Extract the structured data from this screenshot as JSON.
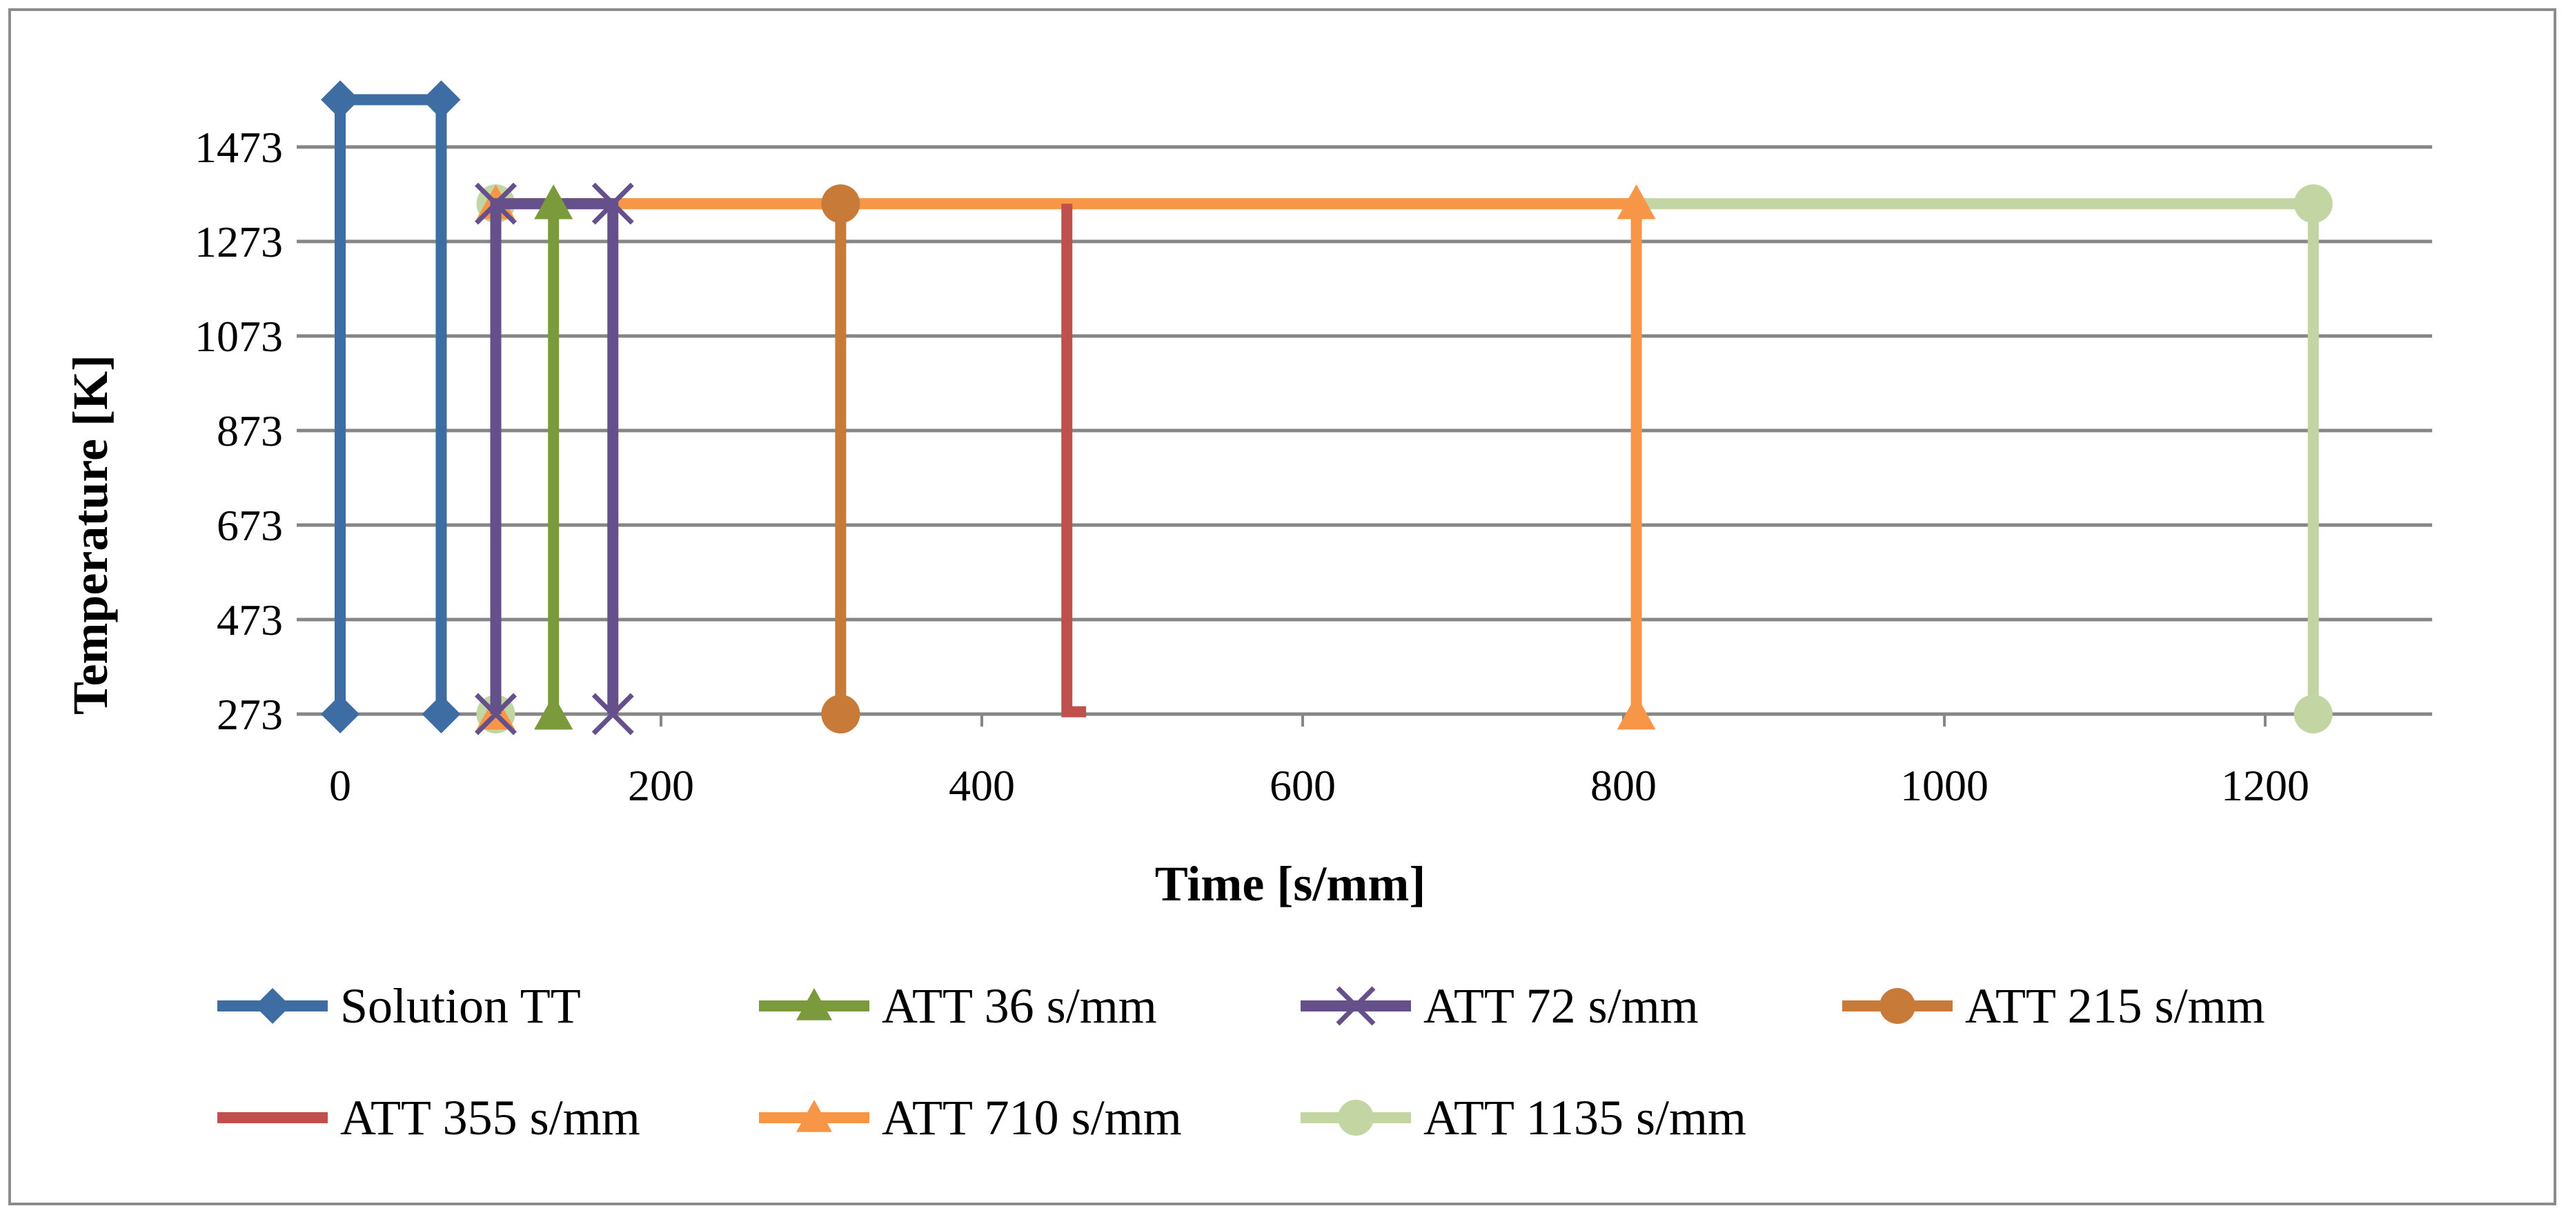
{
  "chart_data": {
    "type": "line",
    "title": "",
    "xlabel": "Time [s/mm]",
    "ylabel": "Temperature [K]",
    "xlim": [
      0,
      1300
    ],
    "ylim": [
      273,
      1573
    ],
    "xticks": [
      0,
      200,
      400,
      600,
      800,
      1000,
      1200
    ],
    "yticks": [
      273,
      473,
      673,
      873,
      1073,
      1273,
      1473
    ],
    "grid": "horizontal",
    "legend_position": "bottom",
    "series": [
      {
        "name": "Solution TT",
        "color": "#3e6da4",
        "marker": "diamond",
        "x": [
          0,
          0,
          63,
          63
        ],
        "y": [
          273,
          1573,
          1573,
          273
        ]
      },
      {
        "name": "ATT 36 s/mm",
        "color": "#7a9a3c",
        "marker": "triangle",
        "x": [
          133,
          133,
          133
        ],
        "y": [
          273,
          1353,
          273
        ]
      },
      {
        "name": "ATT 72 s/mm",
        "color": "#65508c",
        "marker": "x",
        "x": [
          97,
          97,
          170,
          170
        ],
        "y": [
          273,
          1353,
          1353,
          273
        ]
      },
      {
        "name": "ATT 215 s/mm",
        "color": "#c87a38",
        "marker": "circle",
        "x": [
          312,
          312,
          312
        ],
        "y": [
          273,
          1353,
          273
        ]
      },
      {
        "name": "ATT 355 s/mm",
        "color": "#c0504d",
        "marker": "none",
        "x": [
          453,
          453,
          465
        ],
        "y": [
          1353,
          278,
          278
        ]
      },
      {
        "name": "ATT 710 s/mm",
        "color": "#f79646",
        "marker": "triangle",
        "x": [
          97,
          97,
          808,
          808
        ],
        "y": [
          273,
          1353,
          1353,
          273
        ]
      },
      {
        "name": "ATT 1135 s/mm",
        "color": "#c3d5a3",
        "marker": "circle",
        "x": [
          97,
          97,
          1230,
          1230
        ],
        "y": [
          273,
          1353,
          1353,
          273
        ]
      }
    ]
  }
}
